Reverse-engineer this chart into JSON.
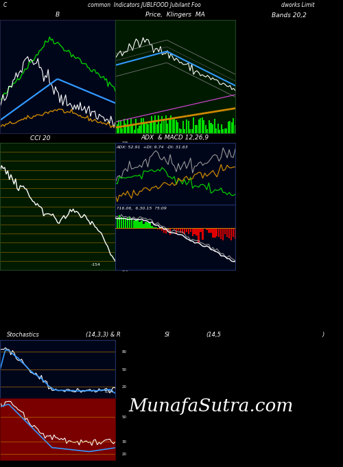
{
  "bg_color": "#000000",
  "dark_navy": "#00061a",
  "dark_green": "#001a00",
  "title_text": "common  Indicators JUBLFOOD Jubilant Foo",
  "subtitle_right": "dworks Limit",
  "subtitle_left": "C",
  "label_B": "B",
  "label_price": "Price,  Klingers  MA",
  "label_bands": "Bands 20,2",
  "label_cci": "CCI 20",
  "label_adx": "ADX  & MACD 12,26,9",
  "adx_label": "ADX: 52.91  +DI: 9.74  -DI: 31.63",
  "macd_label": "?16.06,  6.30.15  ?5:09",
  "stoch_label": "Stochastics",
  "stoch_params": "(14,3,3) & R",
  "si_label": "SI",
  "si_params": "(14,5",
  "si_close": ")",
  "watermark": "MunafaSutra.com",
  "orange_line": "#cc8800",
  "green_bar": "#00dd00",
  "red_bar": "#dd0000",
  "green_line": "#00cc00",
  "blue_line": "#3399ff",
  "white_line": "#ffffff",
  "gray_line": "#aaaaaa",
  "magenta_line": "#cc44cc"
}
